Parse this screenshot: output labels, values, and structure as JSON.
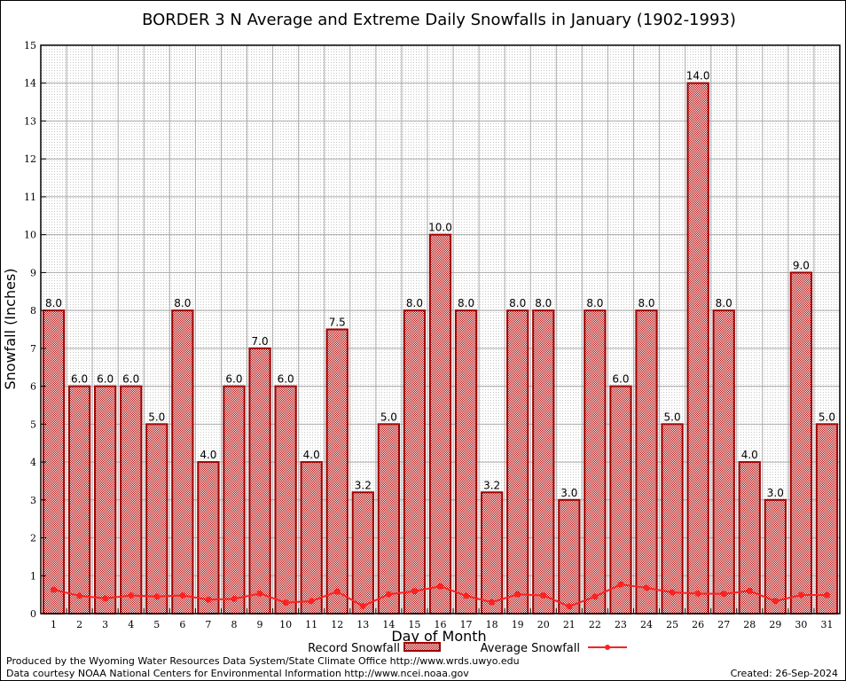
{
  "chart_data": {
    "type": "bar",
    "title": "BORDER 3 N Average and Extreme Daily Snowfalls in January (1902-1993)",
    "xlabel": "Day of Month",
    "ylabel": "Snowfall (Inches)",
    "ylim": [
      0,
      15
    ],
    "yticks": [
      "0",
      "1",
      "2",
      "3",
      "4",
      "5",
      "6",
      "7",
      "8",
      "9",
      "10",
      "11",
      "12",
      "13",
      "14",
      "15"
    ],
    "grid": true,
    "legend_position": "bottom",
    "categories": [
      "1",
      "2",
      "3",
      "4",
      "5",
      "6",
      "7",
      "8",
      "9",
      "10",
      "11",
      "12",
      "13",
      "14",
      "15",
      "16",
      "17",
      "18",
      "19",
      "20",
      "21",
      "22",
      "23",
      "24",
      "25",
      "26",
      "27",
      "28",
      "29",
      "30",
      "31"
    ],
    "series": [
      {
        "name": "Record Snowfall",
        "type": "bar",
        "color": "#a00000",
        "values": [
          8.0,
          6.0,
          6.0,
          6.0,
          5.0,
          8.0,
          4.0,
          6.0,
          7.0,
          6.0,
          4.0,
          7.5,
          3.2,
          5.0,
          8.0,
          10.0,
          8.0,
          3.2,
          8.0,
          8.0,
          3.0,
          8.0,
          6.0,
          8.0,
          5.0,
          14.0,
          8.0,
          4.0,
          3.0,
          9.0,
          5.0
        ],
        "labels": [
          "8.0",
          "6.0",
          "6.0",
          "6.0",
          "5.0",
          "8.0",
          "4.0",
          "6.0",
          "7.0",
          "6.0",
          "4.0",
          "7.5",
          "3.2",
          "5.0",
          "8.0",
          "10.0",
          "8.0",
          "3.2",
          "8.0",
          "8.0",
          "3.0",
          "8.0",
          "6.0",
          "8.0",
          "5.0",
          "14.0",
          "8.0",
          "4.0",
          "3.0",
          "9.0",
          "5.0"
        ]
      },
      {
        "name": "Average Snowfall",
        "type": "line",
        "color": "#ff2020",
        "values": [
          0.63,
          0.47,
          0.4,
          0.48,
          0.45,
          0.48,
          0.37,
          0.39,
          0.53,
          0.29,
          0.33,
          0.58,
          0.2,
          0.51,
          0.59,
          0.72,
          0.47,
          0.3,
          0.51,
          0.48,
          0.19,
          0.45,
          0.77,
          0.68,
          0.56,
          0.53,
          0.52,
          0.6,
          0.33,
          0.49,
          0.49
        ]
      }
    ]
  },
  "footer": {
    "line1": "Produced by the Wyoming Water Resources Data System/State Climate Office http://www.wrds.uwyo.edu",
    "line2": "Data courtesy NOAA National Centers for Environmental Information http://www.ncei.noaa.gov",
    "created": "Created: 26-Sep-2024"
  }
}
